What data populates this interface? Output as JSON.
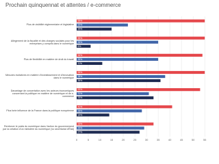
{
  "chart_data": {
    "type": "hbar",
    "title": "Prochain quinquennat et attentes / e-commerce",
    "categories": [
      "Plus de visibilité réglementaire et législative",
      "Allègement de la fiscalité et des charges sociales pour les entreprises y compris dans le numérique",
      "Plus de flexibilité en matière de droit du travail",
      "Mesures incitatives en matière d'investissement et d'innovation dans le numérique",
      "Davantage de concertation avec les acteurs économiques concernant la politique en matière de numérique et de e-commerce",
      "Plus forte influence de la France dans la politique européenne",
      "Renforcer le poids du numérique dans l'action du gouvernement par la création d'un ministère du numérique (vs secrétariat d'État)"
    ],
    "series": [
      {
        "color": "#e5474b",
        "values": [
          55,
          55,
          54,
          55,
          53,
          41,
          33
        ],
        "value_labels": [
          "55%",
          "55%",
          "54%",
          "55%",
          "53%",
          "41%",
          "33%"
        ]
      },
      {
        "color": "#3f64a8",
        "values": [
          22,
          35,
          35,
          38,
          31,
          28,
          29
        ],
        "value_labels": [
          "22%",
          "35%",
          "35%",
          "38%",
          "31%",
          "28%",
          "29%"
        ]
      },
      {
        "color": "#1e2b52",
        "values": [
          15,
          6,
          11,
          36,
          33,
          14,
          27
        ],
        "value_labels": [
          "15%",
          "6%",
          "11%",
          "36%",
          "33%",
          "14%",
          "27%"
        ]
      }
    ],
    "xlim": [
      0,
      57
    ],
    "xticks": [
      0,
      5,
      10,
      15,
      20,
      25,
      30,
      35,
      40,
      45,
      50,
      55
    ],
    "grid": true
  }
}
